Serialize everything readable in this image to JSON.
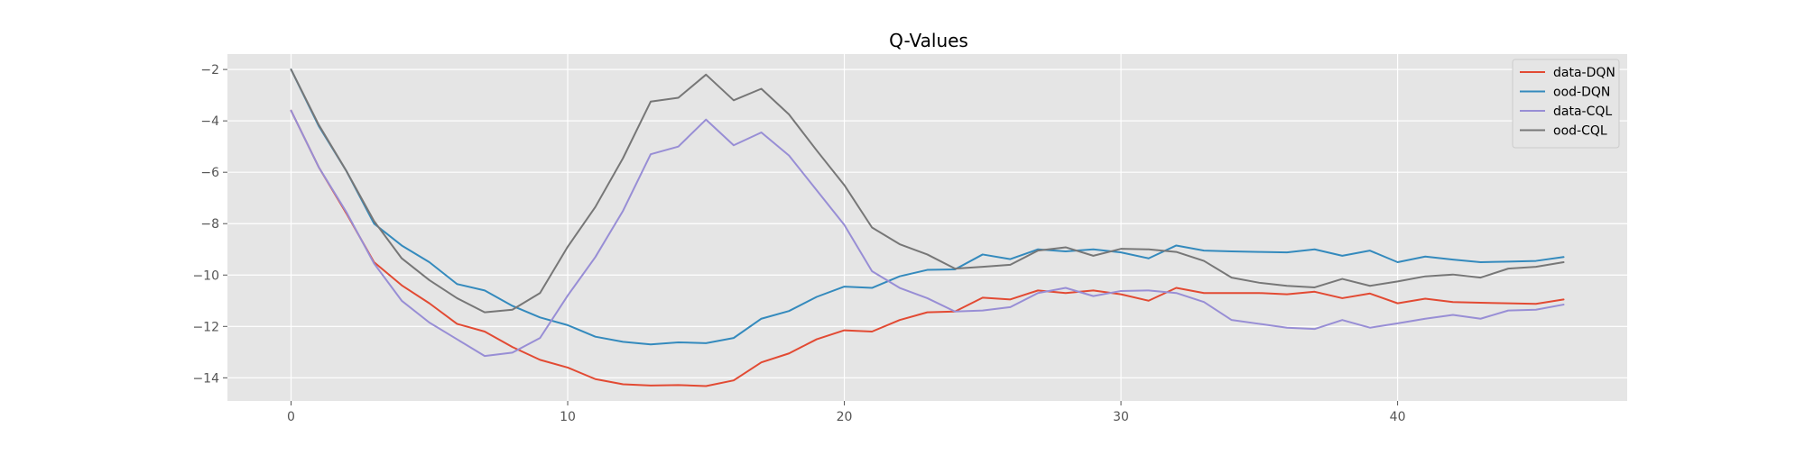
{
  "chart_data": {
    "type": "line",
    "title": "Q-Values",
    "xlabel": "",
    "ylabel": "",
    "xlim": [
      -2.3,
      48.3
    ],
    "ylim": [
      -14.9,
      -1.4
    ],
    "xticks": [
      0,
      10,
      20,
      30,
      40
    ],
    "yticks": [
      -14,
      -12,
      -10,
      -8,
      -6,
      -4,
      -2
    ],
    "grid": true,
    "legend_position": "top-right",
    "x": [
      0,
      1,
      2,
      3,
      4,
      5,
      6,
      7,
      8,
      9,
      10,
      11,
      12,
      13,
      14,
      15,
      16,
      17,
      18,
      19,
      20,
      21,
      22,
      23,
      24,
      25,
      26,
      27,
      28,
      29,
      30,
      31,
      32,
      33,
      34,
      35,
      36,
      37,
      38,
      39,
      40,
      41,
      42,
      43,
      44,
      45,
      46
    ],
    "series": [
      {
        "name": "data-DQN",
        "color": "#E24A33",
        "values": [
          -3.6,
          -5.8,
          -7.6,
          -9.5,
          -10.4,
          -11.1,
          -11.9,
          -12.2,
          -12.8,
          -13.3,
          -13.6,
          -14.05,
          -14.25,
          -14.3,
          -14.28,
          -14.32,
          -14.1,
          -13.4,
          -13.05,
          -12.5,
          -12.15,
          -12.2,
          -11.75,
          -11.45,
          -11.42,
          -10.88,
          -10.95,
          -10.6,
          -10.7,
          -10.6,
          -10.75,
          -11.0,
          -10.5,
          -10.7,
          -10.7,
          -10.7,
          -10.75,
          -10.65,
          -10.9,
          -10.72,
          -11.1,
          -10.92,
          -11.05,
          -11.08,
          -11.1,
          -11.12,
          -10.95
        ]
      },
      {
        "name": "ood-DQN",
        "color": "#348ABD",
        "values": [
          -2.0,
          -4.2,
          -5.95,
          -8.0,
          -8.85,
          -9.5,
          -10.35,
          -10.6,
          -11.2,
          -11.65,
          -11.95,
          -12.4,
          -12.6,
          -12.7,
          -12.62,
          -12.65,
          -12.45,
          -11.7,
          -11.4,
          -10.85,
          -10.45,
          -10.5,
          -10.05,
          -9.8,
          -9.78,
          -9.2,
          -9.38,
          -9.0,
          -9.08,
          -9.0,
          -9.12,
          -9.35,
          -8.85,
          -9.05,
          -9.08,
          -9.1,
          -9.12,
          -9.0,
          -9.25,
          -9.05,
          -9.5,
          -9.28,
          -9.4,
          -9.5,
          -9.48,
          -9.45,
          -9.3
        ]
      },
      {
        "name": "data-CQL",
        "color": "#988ED5",
        "values": [
          -3.6,
          -5.8,
          -7.55,
          -9.55,
          -11.0,
          -11.85,
          -12.5,
          -13.15,
          -13.02,
          -12.45,
          -10.8,
          -9.3,
          -7.5,
          -5.3,
          -5.0,
          -3.95,
          -4.95,
          -4.45,
          -5.35,
          -6.7,
          -8.05,
          -9.85,
          -10.5,
          -10.9,
          -11.42,
          -11.38,
          -11.25,
          -10.7,
          -10.5,
          -10.82,
          -10.62,
          -10.6,
          -10.7,
          -11.05,
          -11.75,
          -11.9,
          -12.05,
          -12.1,
          -11.75,
          -12.05,
          -11.88,
          -11.7,
          -11.55,
          -11.7,
          -11.38,
          -11.35,
          -11.15
        ]
      },
      {
        "name": "ood-CQL",
        "color": "#777777",
        "values": [
          -2.0,
          -4.15,
          -5.95,
          -7.9,
          -9.35,
          -10.2,
          -10.9,
          -11.45,
          -11.35,
          -10.7,
          -8.9,
          -7.35,
          -5.45,
          -3.25,
          -3.1,
          -2.2,
          -3.2,
          -2.75,
          -3.75,
          -5.15,
          -6.5,
          -8.15,
          -8.8,
          -9.2,
          -9.75,
          -9.68,
          -9.6,
          -9.05,
          -8.92,
          -9.25,
          -8.98,
          -9.0,
          -9.1,
          -9.45,
          -10.1,
          -10.3,
          -10.42,
          -10.48,
          -10.15,
          -10.42,
          -10.25,
          -10.05,
          -9.98,
          -10.1,
          -9.75,
          -9.68,
          -9.5
        ]
      }
    ]
  },
  "colors": {
    "plot_background": "#E5E5E5",
    "grid": "#FFFFFF",
    "tick_text": "#555555"
  }
}
